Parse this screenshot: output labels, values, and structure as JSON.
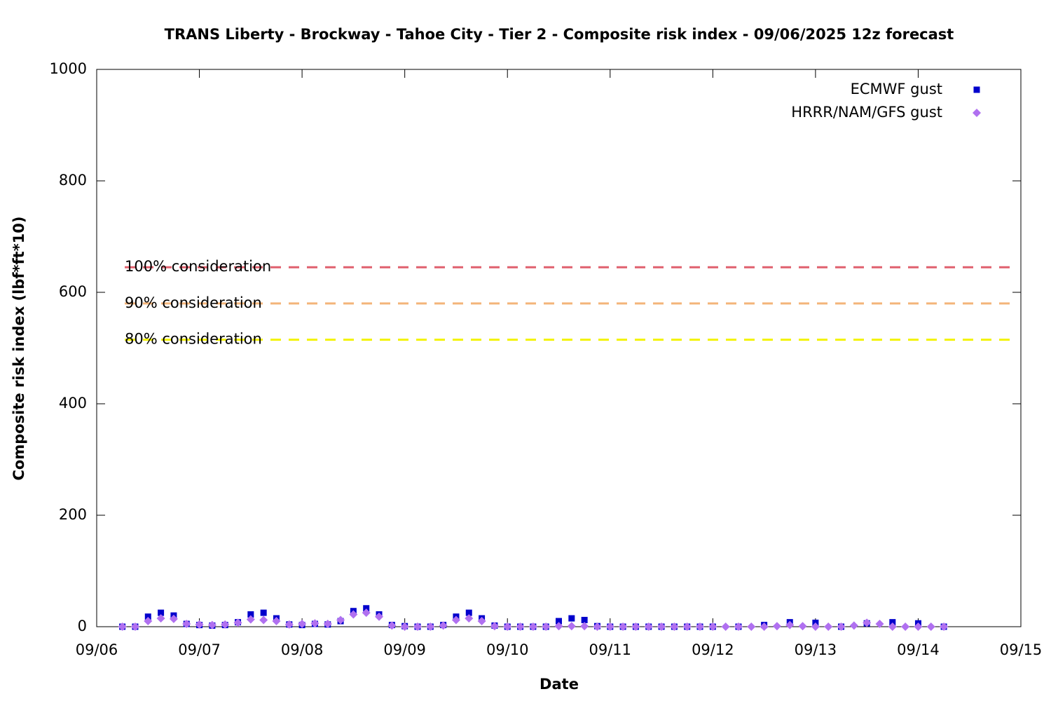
{
  "chart_data": {
    "type": "scatter",
    "title": "TRANS Liberty - Brockway - Tahoe City - Tier 2 - Composite risk index - 09/06/2025 12z forecast",
    "x_label": "Date",
    "y_label": "Composite risk index (lbf*ft*10)",
    "xlim": [
      0,
      9
    ],
    "xticks": [
      {
        "value": 0,
        "label": "09/06"
      },
      {
        "value": 1,
        "label": "09/07"
      },
      {
        "value": 2,
        "label": "09/08"
      },
      {
        "value": 3,
        "label": "09/09"
      },
      {
        "value": 4,
        "label": "09/10"
      },
      {
        "value": 5,
        "label": "09/11"
      },
      {
        "value": 6,
        "label": "09/12"
      },
      {
        "value": 7,
        "label": "09/13"
      },
      {
        "value": 8,
        "label": "09/14"
      },
      {
        "value": 9,
        "label": "09/15"
      }
    ],
    "ylim": [
      0,
      1000
    ],
    "yticks": [
      0,
      200,
      400,
      600,
      800,
      1000
    ],
    "legend": "top-right",
    "thresholds": [
      {
        "label": "100% consideration",
        "value": 645,
        "color": "#e0606e"
      },
      {
        "label": "90% consideration",
        "value": 580,
        "color": "#f4b57a"
      },
      {
        "label": "80% consideration",
        "value": 515,
        "color": "#f2f200"
      }
    ],
    "series": [
      {
        "name": "ECMWF gust",
        "color": "#0000cc",
        "marker": "square",
        "x": [
          0.25,
          0.375,
          0.5,
          0.625,
          0.75,
          0.875,
          1,
          1.125,
          1.25,
          1.375,
          1.5,
          1.625,
          1.75,
          1.875,
          2,
          2.125,
          2.25,
          2.375,
          2.5,
          2.625,
          2.75,
          2.875,
          3,
          3.125,
          3.25,
          3.375,
          3.5,
          3.625,
          3.75,
          3.875,
          4,
          4.125,
          4.25,
          4.375,
          4.5,
          4.625,
          4.75,
          4.875,
          5,
          5.125,
          5.25,
          5.375,
          5.5,
          5.625,
          5.75,
          5.875,
          6,
          6.25,
          6.5,
          6.75,
          7,
          7.25,
          7.5,
          7.75,
          8,
          8.25
        ],
        "values": [
          0,
          0,
          18,
          25,
          20,
          5,
          3,
          2,
          3,
          8,
          22,
          25,
          15,
          4,
          3,
          5,
          4,
          10,
          28,
          33,
          22,
          3,
          1,
          0,
          0,
          3,
          18,
          25,
          15,
          2,
          0,
          0,
          0,
          0,
          10,
          15,
          12,
          1,
          0,
          0,
          0,
          0,
          0,
          0,
          0,
          0,
          0,
          0,
          3,
          8,
          7,
          0,
          6,
          8,
          6,
          0
        ]
      },
      {
        "name": "HRRR/NAM/GFS gust",
        "color": "#b070f0",
        "marker": "diamond",
        "x": [
          0.25,
          0.375,
          0.5,
          0.625,
          0.75,
          0.875,
          1,
          1.125,
          1.25,
          1.375,
          1.5,
          1.625,
          1.75,
          1.875,
          2,
          2.125,
          2.25,
          2.375,
          2.5,
          2.625,
          2.75,
          2.875,
          3,
          3.125,
          3.25,
          3.375,
          3.5,
          3.625,
          3.75,
          3.875,
          4,
          4.125,
          4.25,
          4.375,
          4.5,
          4.625,
          4.75,
          4.875,
          5,
          5.125,
          5.25,
          5.375,
          5.5,
          5.625,
          5.75,
          5.875,
          6,
          6.125,
          6.25,
          6.375,
          6.5,
          6.625,
          6.75,
          6.875,
          7,
          7.125,
          7.25,
          7.375,
          7.5,
          7.625,
          7.75,
          7.875,
          8,
          8.125,
          8.25
        ],
        "values": [
          0,
          0,
          10,
          15,
          14,
          5,
          4,
          3,
          4,
          7,
          13,
          12,
          10,
          4,
          5,
          6,
          5,
          12,
          22,
          25,
          18,
          2,
          0,
          0,
          0,
          2,
          12,
          15,
          10,
          1,
          0,
          0,
          0,
          0,
          1,
          1,
          1,
          0,
          0,
          0,
          0,
          0,
          0,
          0,
          0,
          0,
          0,
          0,
          0,
          0,
          0,
          1,
          3,
          1,
          0,
          0,
          0,
          2,
          7,
          5,
          0,
          0,
          0,
          0,
          0
        ]
      }
    ]
  }
}
